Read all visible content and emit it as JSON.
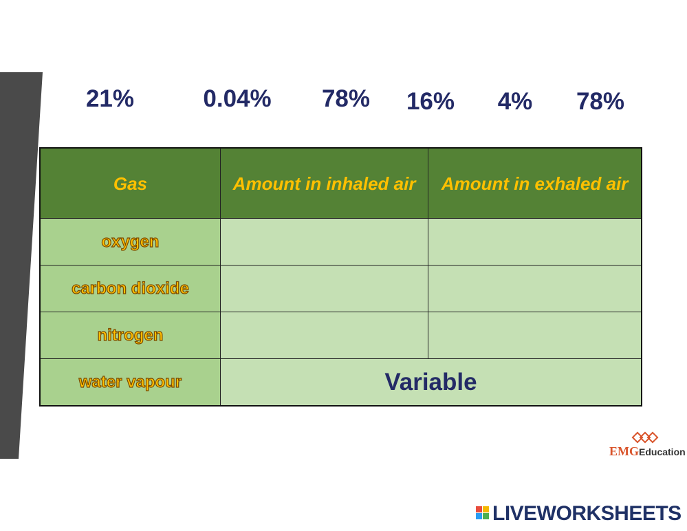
{
  "options": [
    "21%",
    "0.04%",
    "78%",
    "16%",
    "4%",
    "78%"
  ],
  "table": {
    "header": [
      "Gas",
      "Amount in inhaled air",
      "Amount in exhaled air"
    ],
    "rows": [
      [
        "oxygen"
      ],
      [
        "carbon dioxide"
      ],
      [
        "nitrogen"
      ],
      [
        "water vapour",
        "Variable"
      ]
    ]
  },
  "logo": {
    "brand": "EMG",
    "name": "Education"
  },
  "footer": "LIVEWORKSHEETS"
}
